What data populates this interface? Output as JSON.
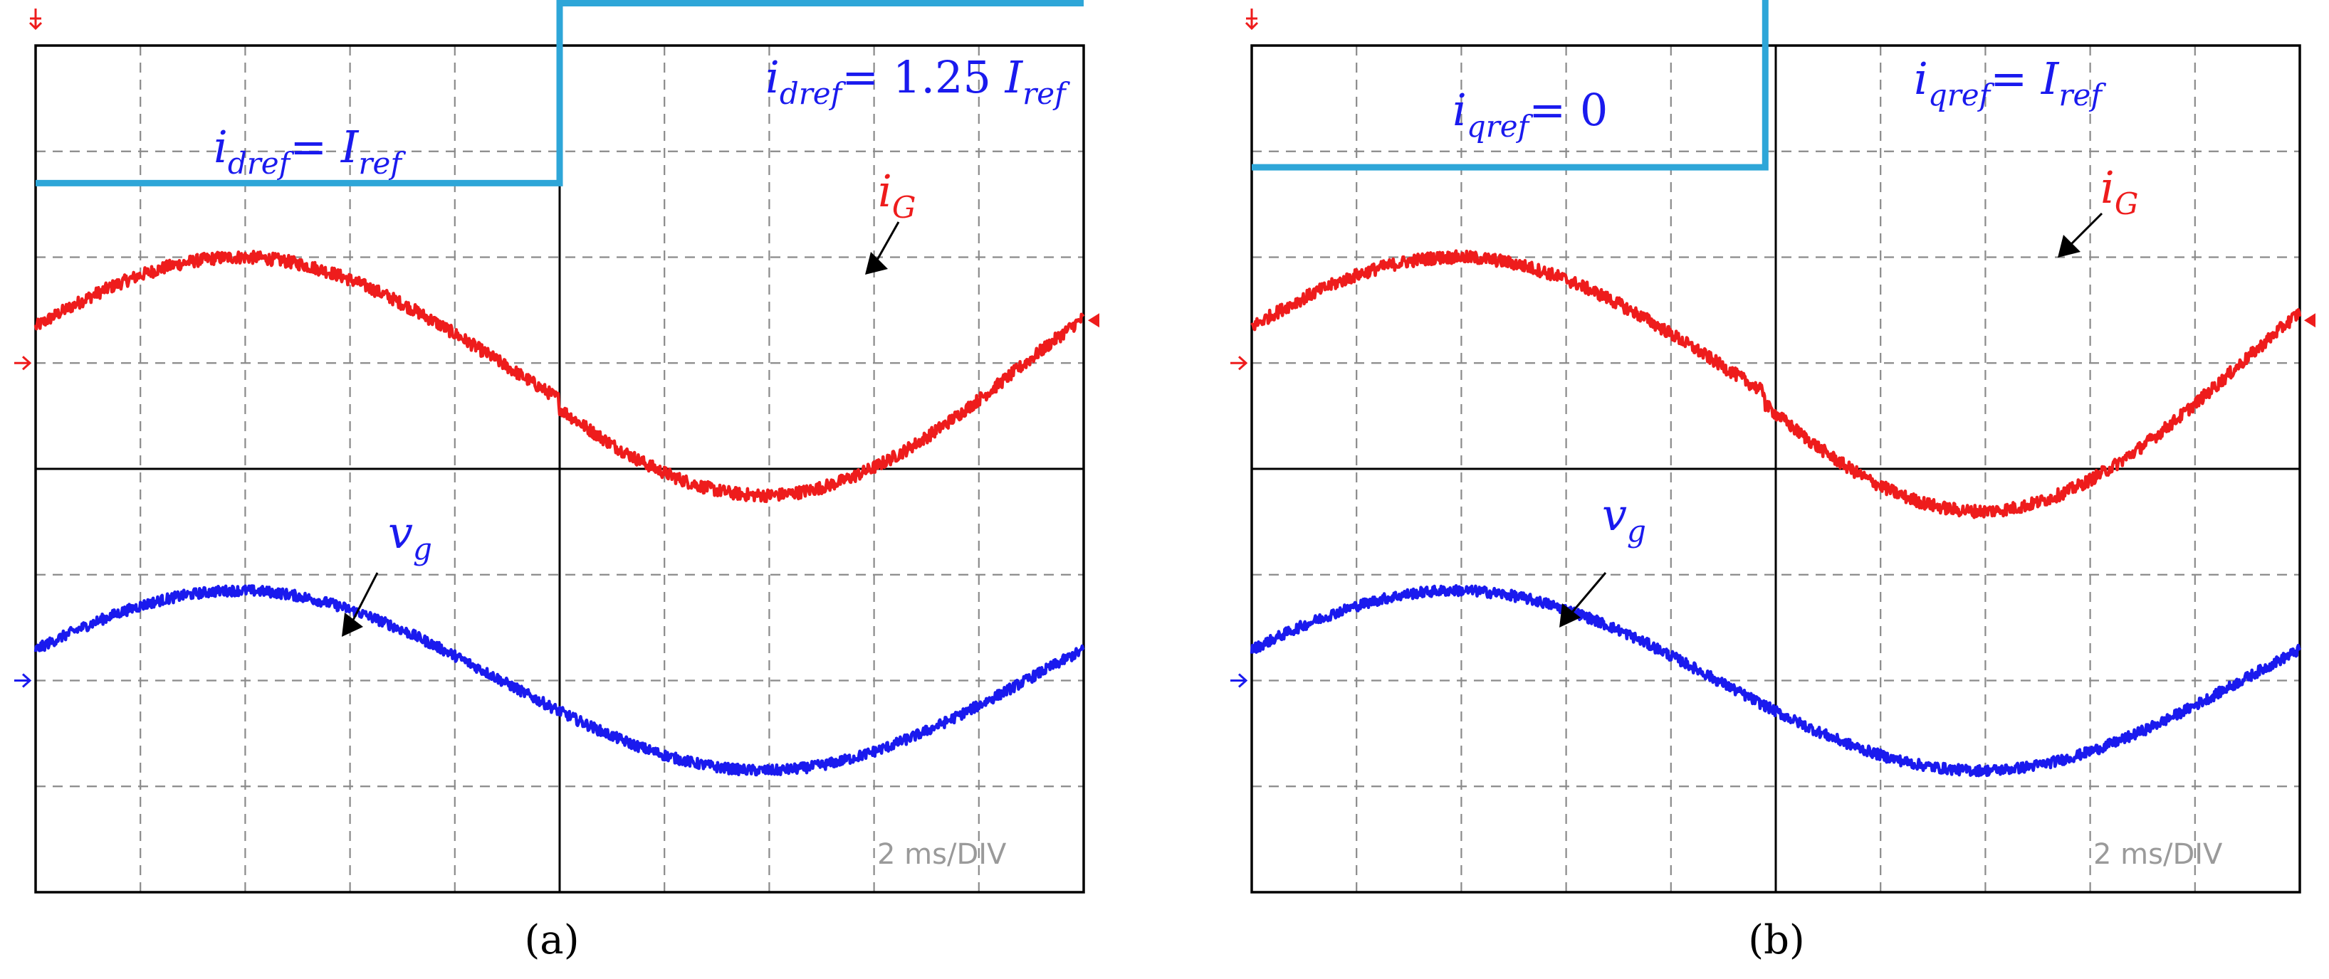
{
  "chart_data": [
    {
      "type": "line",
      "caption": "(a)",
      "time_scale": "2 ms/DIV",
      "grid": true,
      "divisions": {
        "x": 10,
        "y": 8
      },
      "x_range_div": [
        0,
        10
      ],
      "step_time_div": 5,
      "colors": {
        "ref": "#2ea6d8",
        "iG": "#ee1c1c",
        "vg": "#1a1aee"
      },
      "ref_labels": {
        "before": {
          "i": "i",
          "sub": "dref",
          "eq": "= ",
          "I": "I",
          "Isub": "ref"
        },
        "after": {
          "i": "i",
          "sub": "dref",
          "eq": "= 1.25 ",
          "I": "I",
          "Isub": "ref"
        }
      },
      "series": [
        {
          "name": "iG",
          "label_main": "i",
          "label_sub": "G",
          "frequency_hz": 50,
          "phase_deg": 20,
          "amplitude_div_before": 1.0,
          "amplitude_div_after": 1.25,
          "offset_div": 5.0,
          "step_at_div": 5
        },
        {
          "name": "vg",
          "label_main": "v",
          "label_sub": "g",
          "frequency_hz": 50,
          "phase_deg": 20,
          "amplitude_div": 0.85,
          "offset_div": 2.0
        },
        {
          "name": "ref",
          "level_div_before": 6.7,
          "level_div_after": 8.4,
          "step_at_div": 5
        }
      ]
    },
    {
      "type": "line",
      "caption": "(b)",
      "time_scale": "2 ms/DIV",
      "grid": true,
      "divisions": {
        "x": 10,
        "y": 8
      },
      "x_range_div": [
        0,
        10
      ],
      "step_time_div": 4.9,
      "colors": {
        "ref": "#2ea6d8",
        "iG": "#ee1c1c",
        "vg": "#1a1aee"
      },
      "ref_labels": {
        "before": {
          "i": "i",
          "sub": "qref",
          "eq": "= 0",
          "I": "",
          "Isub": ""
        },
        "after": {
          "i": "i",
          "sub": "qref",
          "eq": "= ",
          "I": "I",
          "Isub": "ref"
        }
      },
      "series": [
        {
          "name": "iG",
          "label_main": "i",
          "label_sub": "G",
          "frequency_hz": 50,
          "phase_deg": 20,
          "amplitude_div_before": 1.0,
          "amplitude_div_after": 1.4,
          "offset_div": 5.0,
          "step_at_div": 4.9
        },
        {
          "name": "vg",
          "label_main": "v",
          "label_sub": "g",
          "frequency_hz": 50,
          "phase_deg": 20,
          "amplitude_div": 0.85,
          "offset_div": 2.0
        },
        {
          "name": "ref",
          "level_div_before": 6.85,
          "level_div_after": 8.55,
          "step_at_div": 4.9
        }
      ]
    }
  ]
}
